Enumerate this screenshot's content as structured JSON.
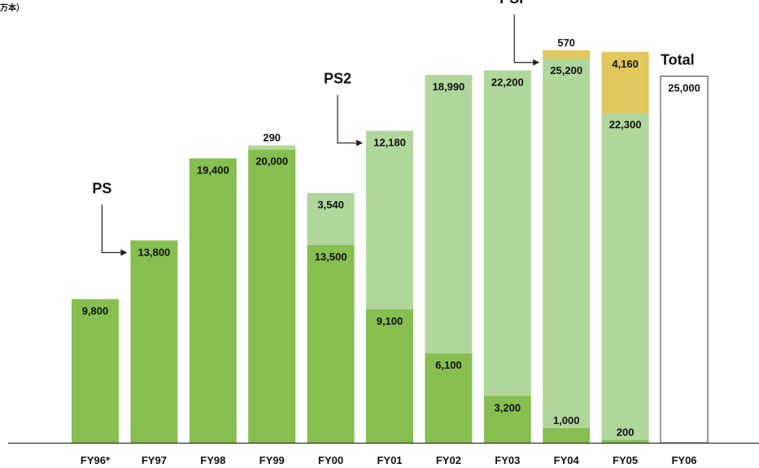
{
  "chart_data": {
    "type": "bar",
    "stacked": true,
    "unit_label": "万本）",
    "categories": [
      "FY96*",
      "FY97",
      "FY98",
      "FY99",
      "FY00",
      "FY01",
      "FY02",
      "FY03",
      "FY04",
      "FY05",
      "FY06"
    ],
    "series": [
      {
        "name": "PS",
        "color": "#86bf50",
        "values": [
          9800,
          13800,
          19400,
          20000,
          13500,
          9100,
          6100,
          3200,
          1000,
          200,
          null
        ],
        "labels": [
          "9,800",
          "13,800",
          "19,400",
          "20,000",
          "13,500",
          "9,100",
          "6,100",
          "3,200",
          "1,000",
          "200",
          null
        ]
      },
      {
        "name": "PS2",
        "color": "#b1d69b",
        "values": [
          null,
          null,
          null,
          290,
          3540,
          12180,
          18990,
          22200,
          25200,
          22300,
          null
        ],
        "labels": [
          null,
          null,
          null,
          "290",
          "3,540",
          "12,180",
          "18,990",
          "22,200",
          "25,200",
          "22,300",
          null
        ]
      },
      {
        "name": "PSP",
        "color": "#e1c75c",
        "values": [
          null,
          null,
          null,
          null,
          null,
          null,
          null,
          null,
          570,
          4160,
          null
        ],
        "labels": [
          null,
          null,
          null,
          null,
          null,
          null,
          null,
          null,
          "570",
          "4,160",
          null
        ]
      },
      {
        "name": "Total",
        "color": "#ffffff",
        "outline": "#333333",
        "values": [
          null,
          null,
          null,
          null,
          null,
          null,
          null,
          null,
          null,
          null,
          25000
        ],
        "labels": [
          null,
          null,
          null,
          null,
          null,
          null,
          null,
          null,
          null,
          null,
          "25,000"
        ]
      }
    ],
    "annotations": [
      {
        "text": "PS",
        "category": "FY97"
      },
      {
        "text": "PS2",
        "category": "FY01"
      },
      {
        "text": "PSP",
        "category": "FY04"
      },
      {
        "text": "Total",
        "category": "FY06"
      }
    ],
    "ylim": [
      0,
      29200
    ],
    "grid": false,
    "legend": "none",
    "axis_color": "#333333",
    "text_color": "#111111"
  }
}
